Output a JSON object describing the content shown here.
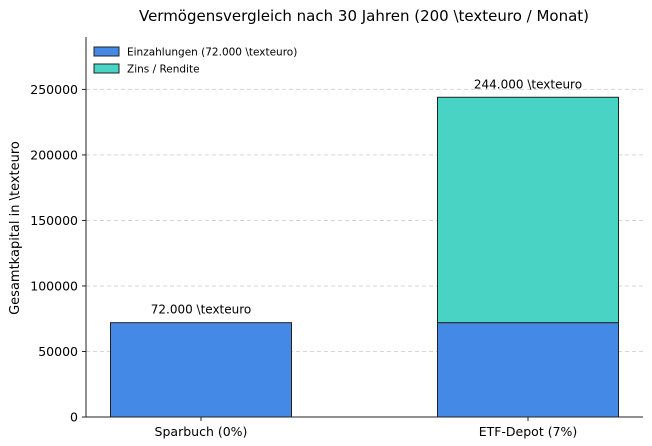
{
  "chart_data": {
    "type": "bar",
    "stacked": true,
    "title": "Vermögensvergleich nach 30 Jahren (200 \\texteuro / Monat)",
    "xlabel": "",
    "ylabel": "Gesamtkapital in \\texteuro",
    "categories": [
      "Sparbuch (0%)",
      "ETF-Depot (7%)"
    ],
    "series": [
      {
        "name": "Einzahlungen (72.000 \\texteuro)",
        "values": [
          72000,
          72000
        ],
        "color": "#4489e6"
      },
      {
        "name": "Zins / Rendite",
        "values": [
          0,
          172000
        ],
        "color": "#48d3c4"
      }
    ],
    "totals": [
      72000,
      244000
    ],
    "total_labels": [
      "72.000 \\texteuro",
      "244.000 \\texteuro"
    ],
    "ylim": [
      0,
      290000
    ],
    "yticks": [
      0,
      50000,
      100000,
      150000,
      200000,
      250000
    ],
    "ytick_labels": [
      "0",
      "50000",
      "100000",
      "150000",
      "200000",
      "250000"
    ],
    "grid": "y-dashed",
    "legend_position": "top-left"
  }
}
